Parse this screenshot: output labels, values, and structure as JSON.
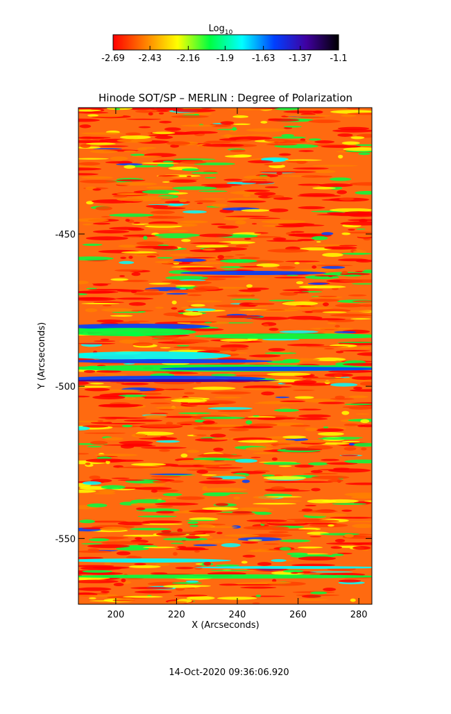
{
  "chart_data": {
    "type": "image",
    "title": "Hinode SOT/SP – MERLIN : Degree of Polarization",
    "xlabel": "X (Arcseconds)",
    "ylabel": "Y (Arcseconds)",
    "xlim": [
      187.7,
      284.3
    ],
    "xticks": [
      200,
      220,
      240,
      260,
      280
    ],
    "ylim": [
      -571.6,
      -408.5
    ],
    "yticks": [
      -450,
      -500,
      -550
    ],
    "colorbar_label": "Log",
    "colorbar_label_subscript": "10",
    "clim": [
      -2.69,
      -1.1
    ],
    "cticks": [
      -2.69,
      -2.43,
      -2.16,
      -1.9,
      -1.63,
      -1.37,
      -1.1
    ],
    "colormap": [
      "#ff0000",
      "#ff8000",
      "#ffff00",
      "#00ff40",
      "#00ffff",
      "#0040ff",
      "#4000a0",
      "#000000"
    ],
    "timestamp": "14-Oct-2020 09:36:06.920"
  }
}
